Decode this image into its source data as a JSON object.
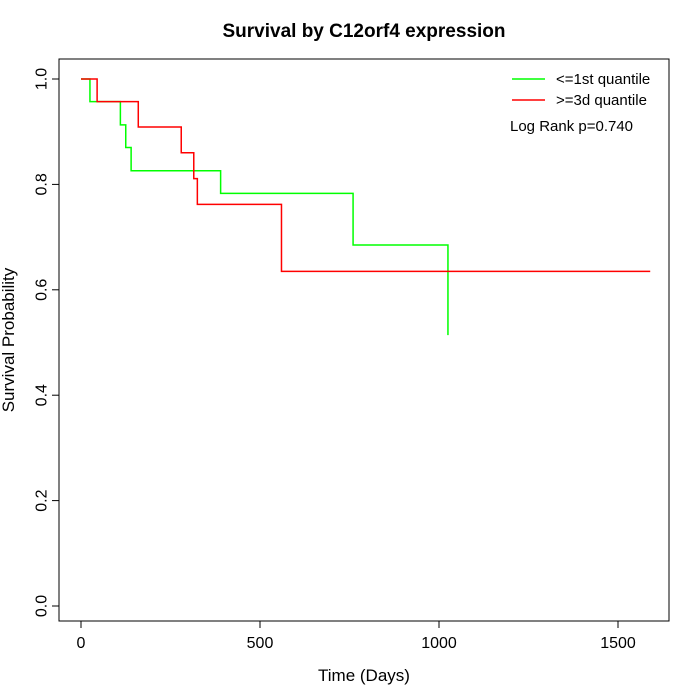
{
  "chart_data": {
    "type": "line",
    "title": "Survival by C12orf4 expression",
    "xlabel": "Time (Days)",
    "ylabel": "Survival Probability",
    "xlim": [
      0,
      1650
    ],
    "ylim": [
      0,
      1
    ],
    "x_ticks": [
      0,
      500,
      1000,
      1500
    ],
    "y_ticks": [
      0.0,
      0.2,
      0.4,
      0.6,
      0.8,
      1.0
    ],
    "x_tick_labels": [
      "0",
      "500",
      "1000",
      "1500"
    ],
    "y_tick_labels": [
      "0.0",
      "0.2",
      "0.4",
      "0.6",
      "0.8",
      "1.0"
    ],
    "grid": false,
    "legend_position": "top-right",
    "annotation": "Log Rank p=0.740",
    "series": [
      {
        "name": "<=1st quantile",
        "color": "#00ff00",
        "x": [
          0,
          25,
          105,
          110,
          125,
          140,
          390,
          760,
          1025
        ],
        "y": [
          1.0,
          0.957,
          0.957,
          0.913,
          0.87,
          0.826,
          0.783,
          0.685,
          0.514
        ]
      },
      {
        "name": ">=3d quantile",
        "color": "#ff0000",
        "x": [
          0,
          45,
          160,
          280,
          315,
          325,
          560,
          1590
        ],
        "y": [
          1.0,
          0.957,
          0.909,
          0.86,
          0.811,
          0.762,
          0.635,
          0.635
        ]
      }
    ]
  }
}
